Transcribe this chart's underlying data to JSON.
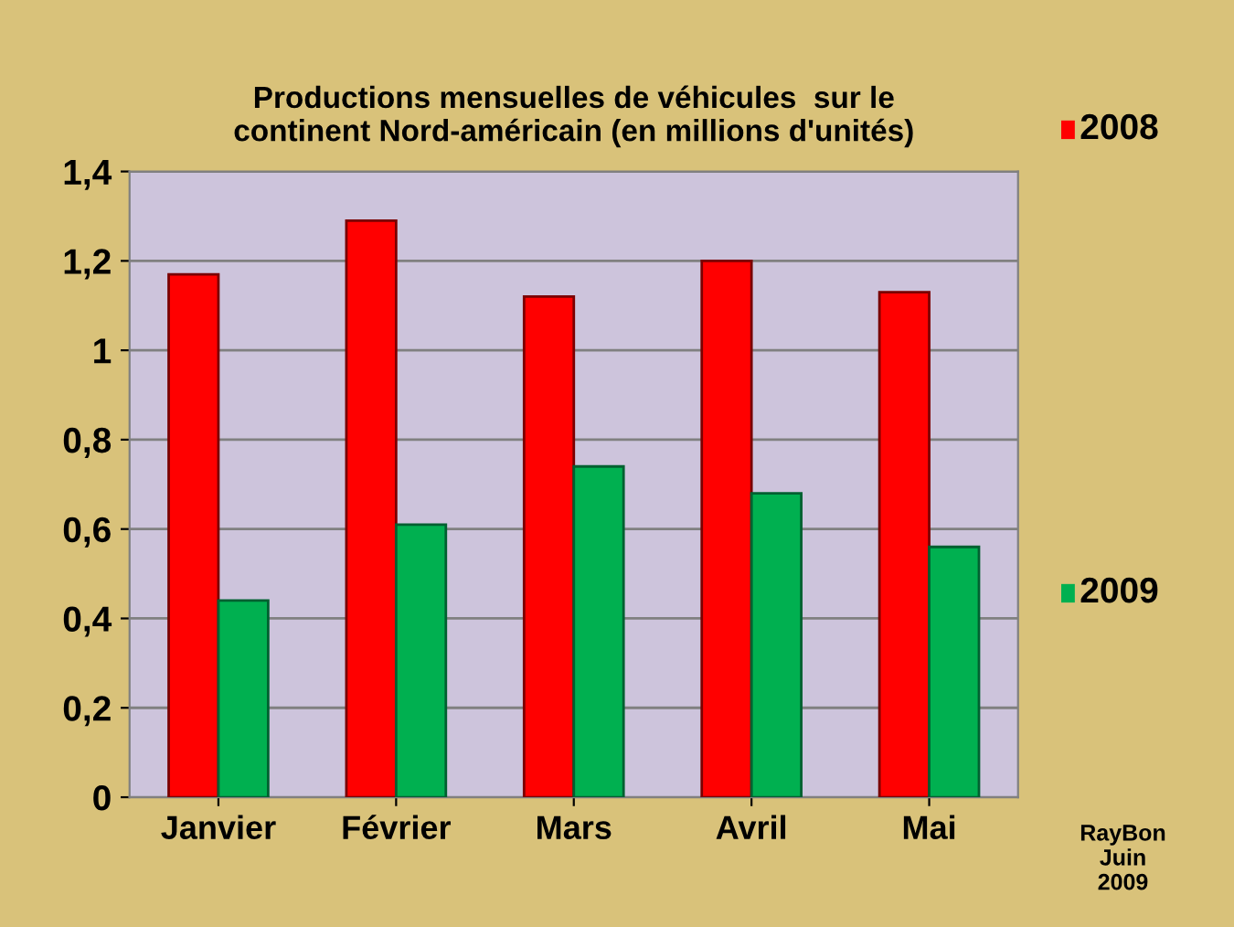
{
  "chart_data": {
    "type": "bar",
    "title": "Productions mensuelles de véhicules  sur le\ncontinent Nord-américain (en millions d'unités)",
    "categories": [
      "Janvier",
      "Février",
      "Mars",
      "Avril",
      "Mai"
    ],
    "series": [
      {
        "name": "2008",
        "color": "#ff0000",
        "values": [
          1.17,
          1.29,
          1.12,
          1.2,
          1.13
        ]
      },
      {
        "name": "2009",
        "color": "#00b050",
        "values": [
          0.44,
          0.61,
          0.74,
          0.68,
          0.56
        ]
      }
    ],
    "ylim": [
      0,
      1.4
    ],
    "yticks": [
      {
        "value": 0,
        "label": "0"
      },
      {
        "value": 0.2,
        "label": "0,2"
      },
      {
        "value": 0.4,
        "label": "0,4"
      },
      {
        "value": 0.6,
        "label": "0,6"
      },
      {
        "value": 0.8,
        "label": "0,8"
      },
      {
        "value": 1,
        "label": "1"
      },
      {
        "value": 1.2,
        "label": "1,2"
      },
      {
        "value": 1.4,
        "label": "1,4"
      }
    ],
    "grid": "y",
    "legend": "right",
    "annotations": [
      "RayBon\nJuin\n2009"
    ]
  }
}
